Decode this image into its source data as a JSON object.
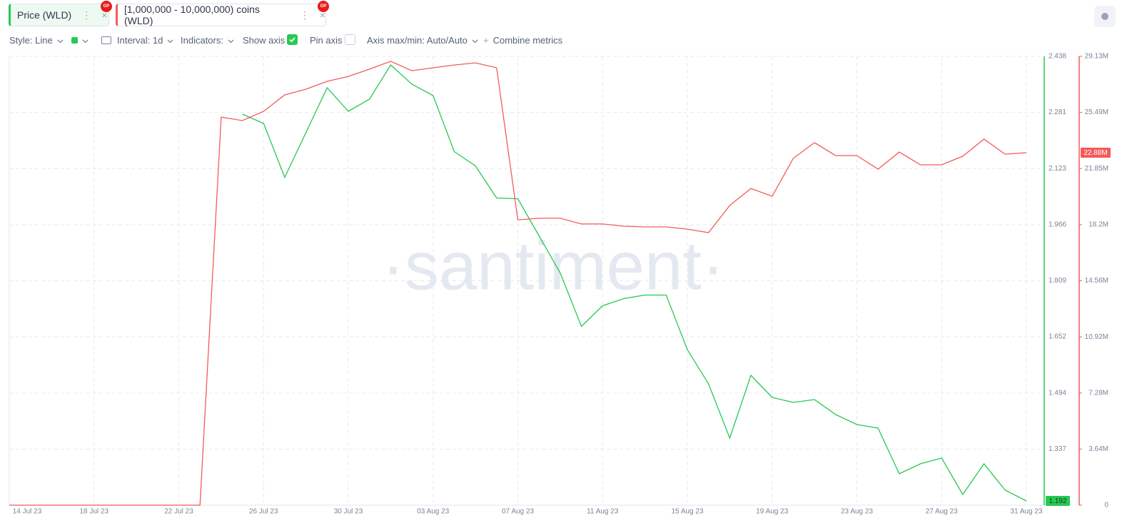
{
  "tabs": [
    {
      "badge": "OP"
    },
    {
      "badge": "OP"
    }
  ],
  "toolbar": {
    "style": "Style: Line",
    "interval": "Interval: 1d",
    "indicators": "Indicators:",
    "show_axis": "Show axis",
    "pin_axis": "Pin axis",
    "axis_minmax": "Axis max/min: Auto/Auto",
    "combine": "Combine metrics"
  },
  "watermark": "·santiment·",
  "chart_data": {
    "type": "line",
    "x": [
      "2023-07-14",
      "2023-07-15",
      "2023-07-16",
      "2023-07-17",
      "2023-07-18",
      "2023-07-19",
      "2023-07-20",
      "2023-07-21",
      "2023-07-22",
      "2023-07-23",
      "2023-07-24",
      "2023-07-25",
      "2023-07-26",
      "2023-07-27",
      "2023-07-28",
      "2023-07-29",
      "2023-07-30",
      "2023-07-31",
      "2023-08-01",
      "2023-08-02",
      "2023-08-03",
      "2023-08-04",
      "2023-08-05",
      "2023-08-06",
      "2023-08-07",
      "2023-08-08",
      "2023-08-09",
      "2023-08-10",
      "2023-08-11",
      "2023-08-12",
      "2023-08-13",
      "2023-08-14",
      "2023-08-15",
      "2023-08-16",
      "2023-08-17",
      "2023-08-18",
      "2023-08-19",
      "2023-08-20",
      "2023-08-21",
      "2023-08-22",
      "2023-08-23",
      "2023-08-24",
      "2023-08-25",
      "2023-08-26",
      "2023-08-27",
      "2023-08-28",
      "2023-08-29",
      "2023-08-30",
      "2023-08-31"
    ],
    "xlim": [
      "2023-07-14",
      "2023-08-31"
    ],
    "xticks": [
      {
        "value": "2023-07-14",
        "label": "14 Jul 23"
      },
      {
        "value": "2023-07-18",
        "label": "18 Jul 23"
      },
      {
        "value": "2023-07-22",
        "label": "22 Jul 23"
      },
      {
        "value": "2023-07-26",
        "label": "26 Jul 23"
      },
      {
        "value": "2023-07-30",
        "label": "30 Jul 23"
      },
      {
        "value": "2023-08-03",
        "label": "03 Aug 23"
      },
      {
        "value": "2023-08-07",
        "label": "07 Aug 23"
      },
      {
        "value": "2023-08-11",
        "label": "11 Aug 23"
      },
      {
        "value": "2023-08-15",
        "label": "15 Aug 23"
      },
      {
        "value": "2023-08-19",
        "label": "19 Aug 23"
      },
      {
        "value": "2023-08-23",
        "label": "23 Aug 23"
      },
      {
        "value": "2023-08-27",
        "label": "27 Aug 23"
      },
      {
        "value": "2023-08-31",
        "label": "31 Aug 23"
      }
    ],
    "ylim": [
      1.18,
      2.438
    ],
    "yticks": [
      1.337,
      1.494,
      1.652,
      1.809,
      1.966,
      2.123,
      2.281,
      2.438
    ],
    "y2lim": [
      0,
      29130000
    ],
    "y2ticks": [
      0,
      {
        "value": 3640000,
        "label": "3.64M"
      },
      {
        "value": 7280000,
        "label": "7.28M"
      },
      {
        "value": 10920000,
        "label": "10.92M"
      },
      {
        "value": 14560000,
        "label": "14.56M"
      },
      {
        "value": 18200000,
        "label": "18.2M"
      },
      {
        "value": 21850000,
        "label": "21.85M"
      },
      {
        "value": 25490000,
        "label": "25.49M"
      },
      {
        "value": 29130000,
        "label": "29.13M"
      }
    ],
    "grid": true,
    "series": [
      {
        "name": "Price (WLD)",
        "color": "#26c953",
        "last_value_label": "1.192",
        "values": [
          null,
          null,
          null,
          null,
          null,
          null,
          null,
          null,
          null,
          null,
          null,
          2.276,
          2.25,
          2.099,
          2.224,
          2.35,
          2.284,
          2.318,
          2.414,
          2.36,
          2.328,
          2.171,
          2.131,
          2.041,
          2.039,
          1.935,
          1.831,
          1.681,
          1.739,
          1.759,
          1.769,
          1.769,
          1.616,
          1.52,
          1.368,
          1.544,
          1.482,
          1.468,
          1.476,
          1.434,
          1.406,
          1.396,
          1.268,
          1.296,
          1.312,
          1.21,
          1.296,
          1.222,
          1.192
        ]
      },
      {
        "name": "[1,000,000 - 10,000,000) coins (WLD)",
        "color": "#f45a5a",
        "axis": "y2",
        "last_value_label": "22.88M",
        "values": [
          0,
          0,
          0,
          0,
          0,
          0,
          0,
          0,
          0,
          0,
          25190000,
          24960000,
          25560000,
          26630000,
          27000000,
          27510000,
          27830000,
          28300000,
          28810000,
          28200000,
          28390000,
          28570000,
          28710000,
          28390000,
          18520000,
          18620000,
          18620000,
          18250000,
          18250000,
          18110000,
          18060000,
          18060000,
          17920000,
          17690000,
          19450000,
          20560000,
          20050000,
          22510000,
          23530000,
          22690000,
          22690000,
          21810000,
          22920000,
          22090000,
          22090000,
          22650000,
          23760000,
          22780000,
          22880000
        ]
      }
    ]
  }
}
